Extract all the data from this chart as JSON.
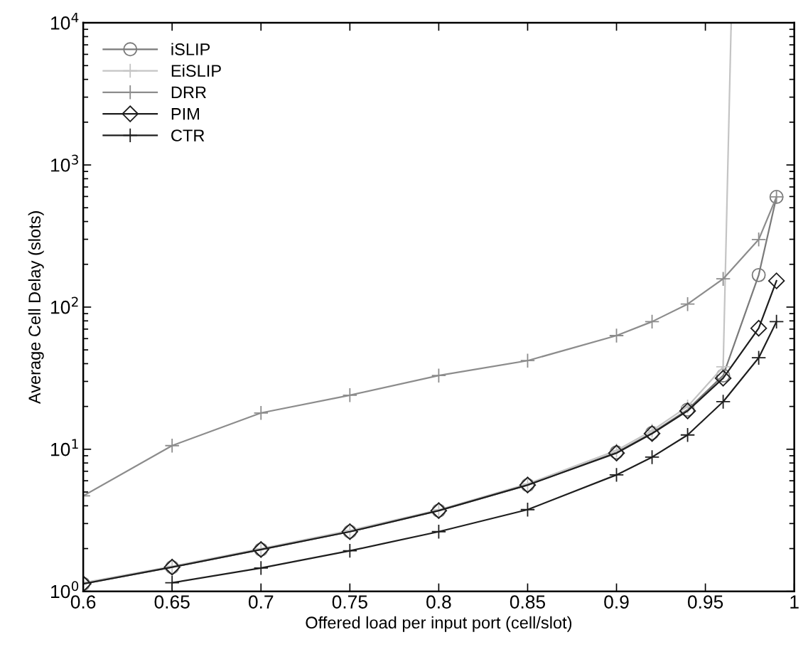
{
  "chart_data": {
    "type": "line",
    "xlabel": "Offered load per input port (cell/slot)",
    "ylabel": "Average Cell Delay (slots)",
    "log": "y",
    "grid": false,
    "legend": "top left",
    "line_style": "solid",
    "xlim": [
      0.6,
      1
    ],
    "xticks": [
      0.6,
      0.65,
      0.7,
      0.75,
      0.8,
      0.85,
      0.9,
      0.95,
      1
    ],
    "ylim": [
      1,
      10000
    ],
    "yticks": [
      {
        "value": 1,
        "label": "10$^{0}$"
      },
      {
        "value": 10,
        "label": "10$^{1}$"
      },
      {
        "value": 100,
        "label": "10$^{2}$"
      },
      {
        "value": 1000,
        "label": "10$^{3}$"
      },
      {
        "value": 10000,
        "label": "10$^{4}$"
      }
    ],
    "series": [
      {
        "name": "iSLIP",
        "color": "#7a7a7a",
        "marker": "circle",
        "x": [
          0.6,
          0.65,
          0.7,
          0.75,
          0.8,
          0.85,
          0.9,
          0.92,
          0.94,
          0.96,
          0.98,
          0.99
        ],
        "values": [
          1.13,
          1.48,
          1.97,
          2.63,
          3.7,
          5.6,
          9.5,
          13,
          19,
          33,
          168,
          596
        ]
      },
      {
        "name": "EiSLIP",
        "color": "#c4c4c4",
        "marker": "cross",
        "x": [
          0.6,
          0.65,
          0.7,
          0.75,
          0.8,
          0.85,
          0.9,
          0.92,
          0.94,
          0.96,
          0.9645
        ],
        "values": [
          1.15,
          1.5,
          2.0,
          2.68,
          3.75,
          5.7,
          9.8,
          13.5,
          20,
          38,
          10000
        ]
      },
      {
        "name": "DRR",
        "color": "#8c8c8c",
        "marker": "cross",
        "x": [
          0.6,
          0.65,
          0.7,
          0.75,
          0.8,
          0.85,
          0.9,
          0.92,
          0.94,
          0.96,
          0.98,
          0.99
        ],
        "values": [
          4.7,
          10.6,
          18,
          24,
          33,
          42,
          63,
          79,
          105,
          158,
          299,
          596
        ]
      },
      {
        "name": "PIM",
        "color": "#1e1e1e",
        "marker": "diamond",
        "x": [
          0.6,
          0.65,
          0.7,
          0.75,
          0.8,
          0.85,
          0.9,
          0.92,
          0.94,
          0.96,
          0.98,
          0.99
        ],
        "values": [
          1.13,
          1.48,
          1.97,
          2.63,
          3.7,
          5.6,
          9.4,
          12.9,
          18.6,
          31.6,
          71,
          153
        ]
      },
      {
        "name": "CTR",
        "color": "#1e1e1e",
        "marker": "cross",
        "x": [
          0.65,
          0.7,
          0.75,
          0.8,
          0.85,
          0.9,
          0.92,
          0.94,
          0.96,
          0.98,
          0.99
        ],
        "values": [
          1.15,
          1.46,
          1.93,
          2.63,
          3.76,
          6.6,
          8.8,
          12.6,
          21.6,
          44,
          79
        ]
      }
    ]
  }
}
